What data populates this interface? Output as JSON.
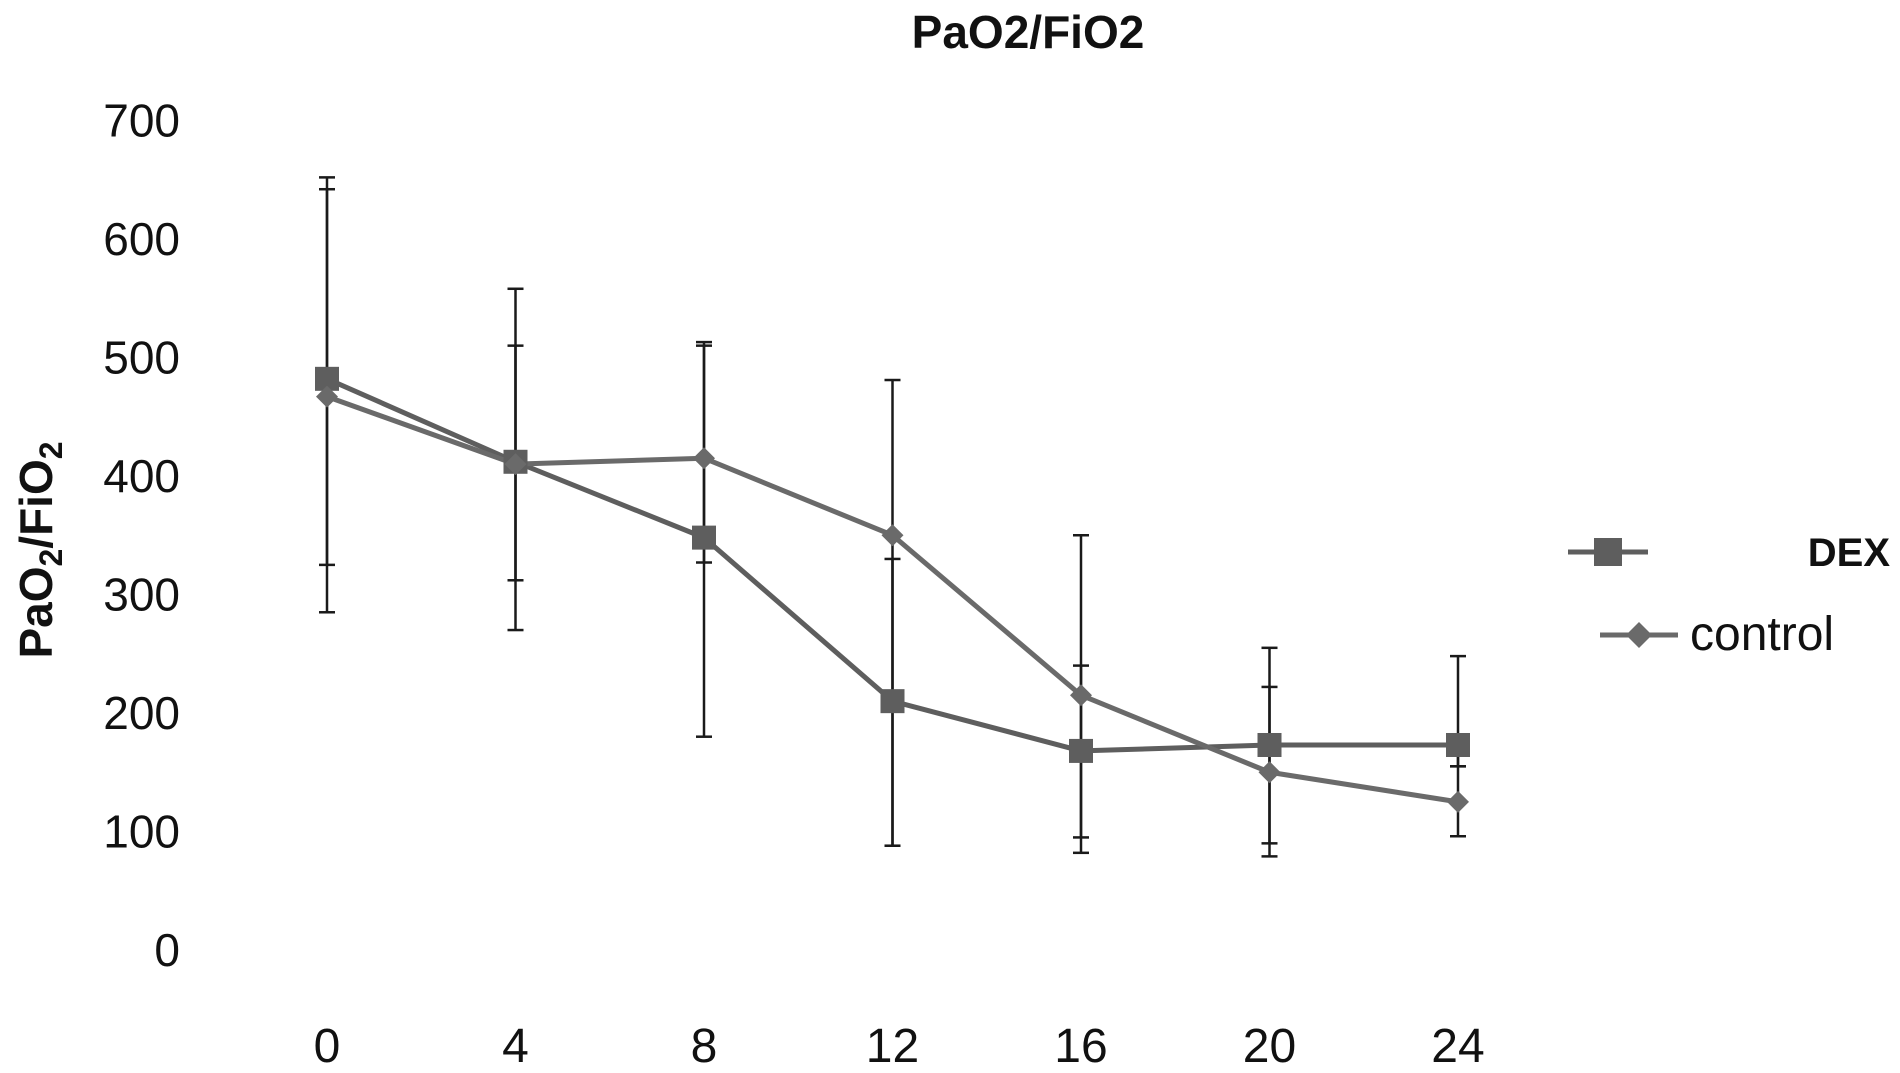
{
  "chart_data": {
    "type": "line",
    "title": "PaO2/FiO2",
    "ylabel": {
      "main": "PaO",
      "sub1": "2",
      "mid": "/FiO",
      "sub2": "2"
    },
    "xlabel": "",
    "x": [
      0,
      4,
      8,
      12,
      16,
      20,
      24
    ],
    "x_tick_labels": [
      "0",
      "4",
      "8",
      "12",
      "16",
      "20",
      "24"
    ],
    "y_tick_labels": [
      "700",
      "600",
      "500",
      "400",
      "300",
      "200",
      "100",
      "0"
    ],
    "y_ticks": [
      700,
      600,
      500,
      400,
      300,
      200,
      100,
      0
    ],
    "ylim": [
      0,
      700
    ],
    "grid": false,
    "legend_position": "right",
    "series": [
      {
        "name": "DEX",
        "marker": "square",
        "color": "#5e5e5e",
        "values": [
          482,
          412,
          348,
          210,
          168,
          173,
          173
        ],
        "error_upper": [
          642,
          510,
          510,
          330,
          240,
          222,
          155
        ],
        "error_lower": [
          325,
          312,
          327,
          88,
          95,
          90,
          155
        ]
      },
      {
        "name": "control",
        "marker": "diamond",
        "color": "#6a6a6a",
        "values": [
          467,
          410,
          415,
          350,
          215,
          150,
          125
        ],
        "error_upper": [
          652,
          558,
          513,
          481,
          350,
          255,
          248
        ],
        "error_lower": [
          285,
          270,
          180,
          88,
          82,
          79,
          96
        ]
      }
    ]
  }
}
